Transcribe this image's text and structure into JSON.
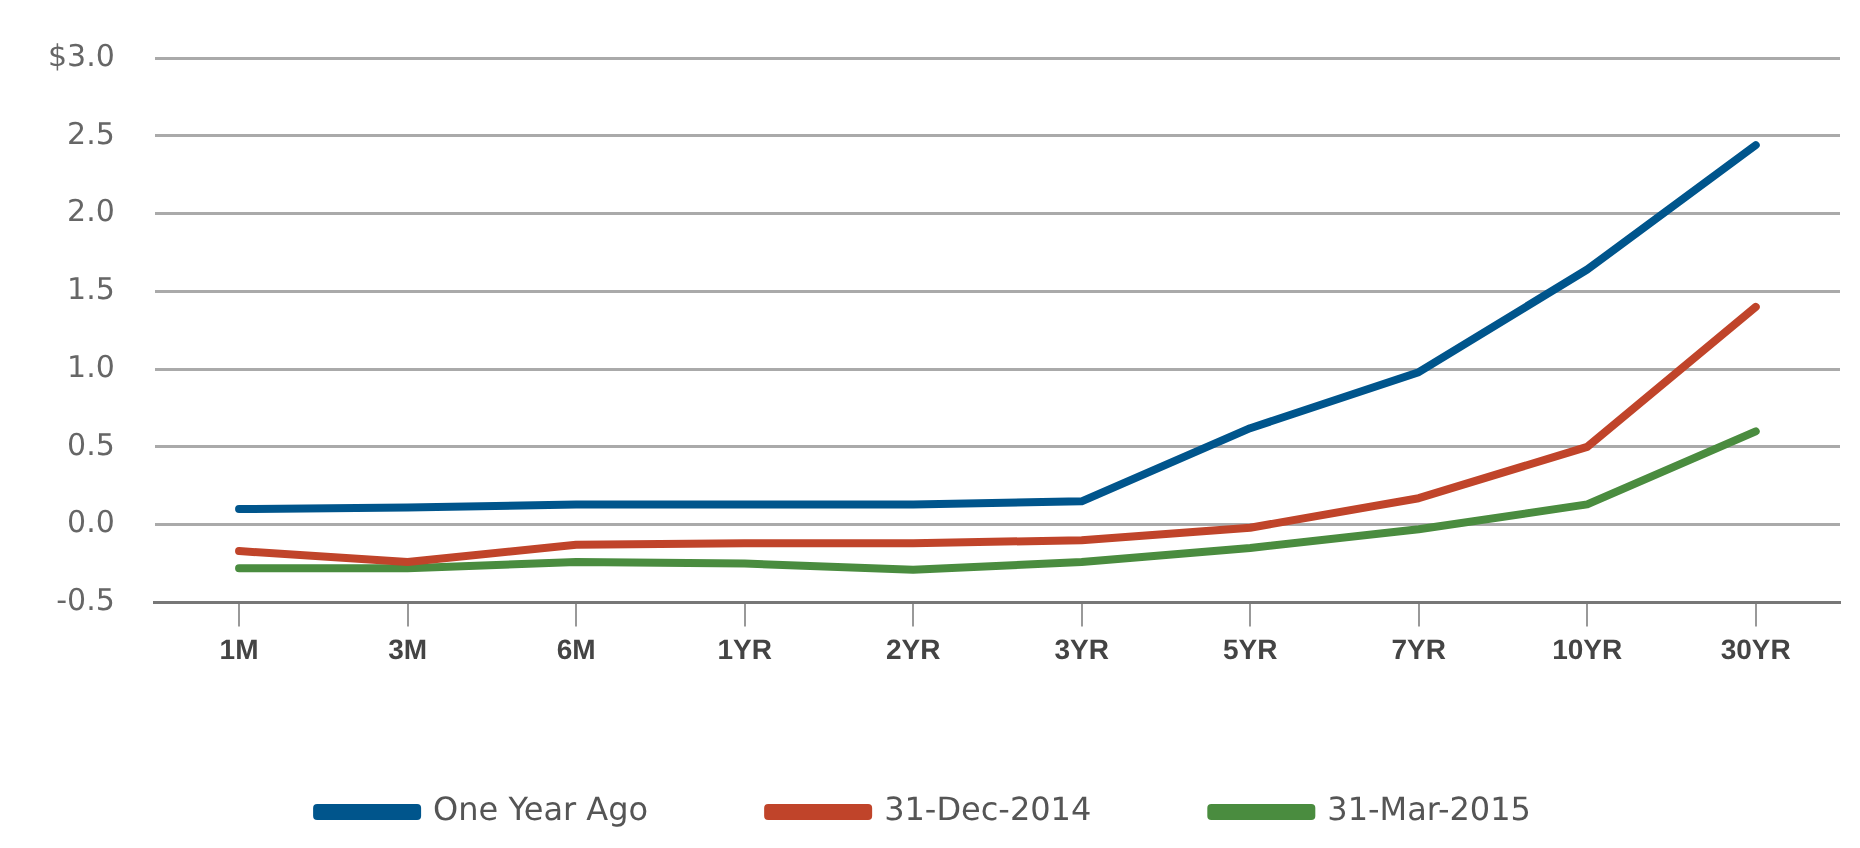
{
  "chart_data": {
    "type": "line",
    "categories": [
      "1M",
      "3M",
      "6M",
      "1YR",
      "2YR",
      "3YR",
      "5YR",
      "7YR",
      "10YR",
      "30YR"
    ],
    "series": [
      {
        "name": "One Year Ago",
        "color": "#00558c",
        "values": [
          0.1,
          0.11,
          0.13,
          0.13,
          0.13,
          0.15,
          0.62,
          0.98,
          1.64,
          2.44
        ]
      },
      {
        "name": "31-Dec-2014",
        "color": "#c0442a",
        "values": [
          -0.17,
          -0.24,
          -0.13,
          -0.12,
          -0.12,
          -0.1,
          -0.02,
          0.17,
          0.5,
          1.4
        ]
      },
      {
        "name": "31-Mar-2015",
        "color": "#4a8c3f",
        "values": [
          -0.28,
          -0.28,
          -0.24,
          -0.25,
          -0.29,
          -0.24,
          -0.15,
          -0.03,
          0.13,
          0.6
        ]
      }
    ],
    "ylim": [
      -0.5,
      3.0
    ],
    "yticks": [
      {
        "value": -0.5,
        "label": "-0.5"
      },
      {
        "value": 0,
        "label": "0.0"
      },
      {
        "value": 0.5,
        "label": "0.5"
      },
      {
        "value": 1,
        "label": "1.0"
      },
      {
        "value": 1.5,
        "label": "1.5"
      },
      {
        "value": 2,
        "label": "2.0"
      },
      {
        "value": 2.5,
        "label": "2.5"
      },
      {
        "value": 3,
        "label": "$3.0"
      }
    ],
    "grid": "y",
    "legend": "bottom",
    "marker": "none",
    "line_style": "solid"
  }
}
